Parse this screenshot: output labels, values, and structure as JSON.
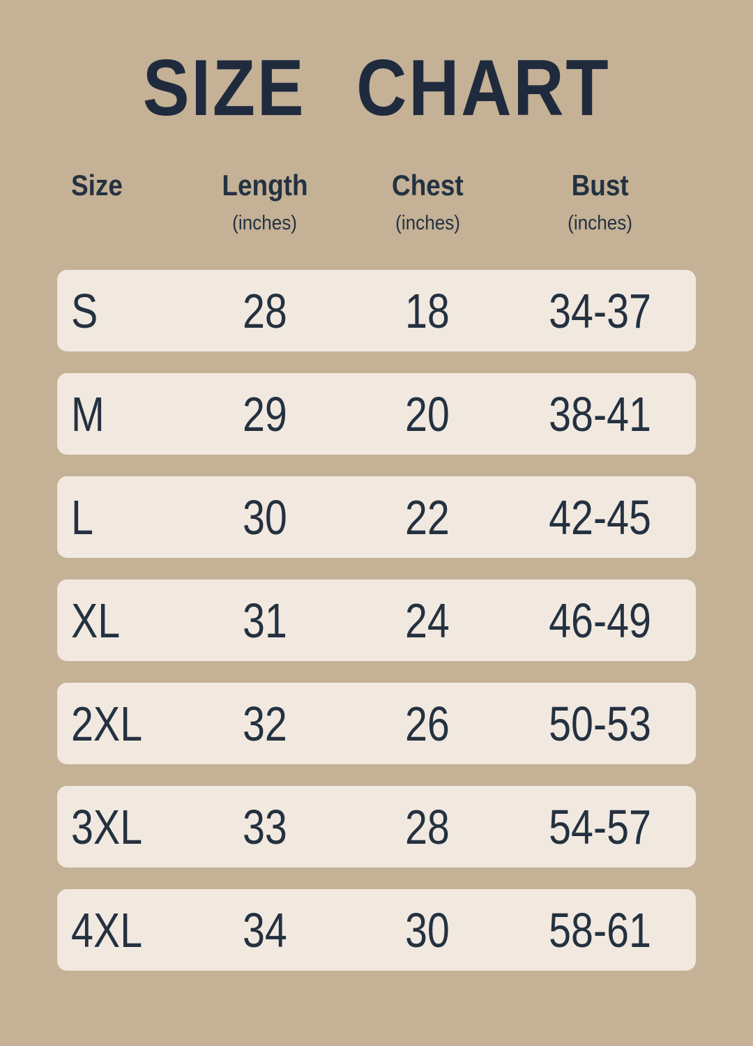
{
  "page": {
    "title": "SIZE CHART"
  },
  "table": {
    "headers": [
      {
        "label": "Size",
        "unit": ""
      },
      {
        "label": "Length",
        "unit": "(inches)"
      },
      {
        "label": "Chest",
        "unit": "(inches)"
      },
      {
        "label": "Bust",
        "unit": "(inches)"
      }
    ],
    "rows": [
      {
        "size": "S",
        "length": "28",
        "chest": "18",
        "bust": "34-37"
      },
      {
        "size": "M",
        "length": "29",
        "chest": "20",
        "bust": "38-41"
      },
      {
        "size": "L",
        "length": "30",
        "chest": "22",
        "bust": "42-45"
      },
      {
        "size": "XL",
        "length": "31",
        "chest": "24",
        "bust": "46-49"
      },
      {
        "size": "2XL",
        "length": "32",
        "chest": "26",
        "bust": "50-53"
      },
      {
        "size": "3XL",
        "length": "33",
        "chest": "28",
        "bust": "54-57"
      },
      {
        "size": "4XL",
        "length": "34",
        "chest": "30",
        "bust": "58-61"
      }
    ]
  },
  "colors": {
    "background": "#c4b196",
    "row_background": "#f1e9e0",
    "text": "#243140",
    "title": "#1f2b3d"
  },
  "chart_data": {
    "type": "table",
    "title": "SIZE CHART",
    "columns": [
      "Size",
      "Length (inches)",
      "Chest (inches)",
      "Bust (inches)"
    ],
    "rows": [
      [
        "S",
        28,
        18,
        "34-37"
      ],
      [
        "M",
        29,
        20,
        "38-41"
      ],
      [
        "L",
        30,
        22,
        "42-45"
      ],
      [
        "XL",
        31,
        24,
        "46-49"
      ],
      [
        "2XL",
        32,
        26,
        "50-53"
      ],
      [
        "3XL",
        33,
        28,
        "54-57"
      ],
      [
        "4XL",
        34,
        30,
        "58-61"
      ]
    ]
  }
}
